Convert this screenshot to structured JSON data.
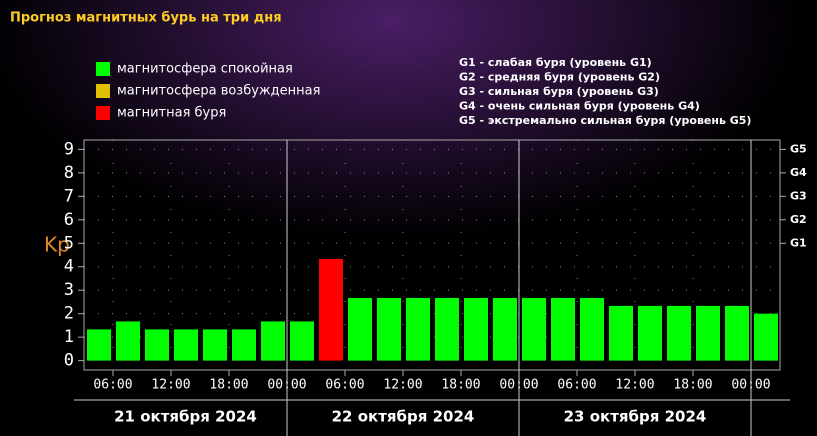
{
  "chart_data": {
    "type": "bar",
    "title": "Прогноз магнитных бурь на три дня",
    "y_label": "Kp",
    "legend": [
      {
        "name": "магнитосфера спокойная",
        "color": "#00ff00"
      },
      {
        "name": "магнитосфера возбужденная",
        "color": "#e0c000"
      },
      {
        "name": "магнитная буря",
        "color": "#ff0000"
      }
    ],
    "notes": [
      "G1 - слабая буря (уровень G1)",
      "G2 - средняя буря (уровень G2)",
      "G3 - сильная буря (уровень G3)",
      "G4 - очень сильная буря (уровень G4)",
      "G5 - экстремально сильная буря (уровень G5)"
    ],
    "values": [
      1.33,
      1.67,
      1.33,
      1.33,
      1.33,
      1.33,
      1.67,
      1.67,
      4.33,
      2.67,
      2.67,
      2.67,
      2.67,
      2.67,
      2.67,
      2.67,
      2.67,
      2.67,
      2.33,
      2.33,
      2.33,
      2.33,
      2.33,
      2.0
    ],
    "colors": [
      "#00ff00",
      "#00ff00",
      "#00ff00",
      "#00ff00",
      "#00ff00",
      "#00ff00",
      "#00ff00",
      "#00ff00",
      "#ff0000",
      "#00ff00",
      "#00ff00",
      "#00ff00",
      "#00ff00",
      "#00ff00",
      "#00ff00",
      "#00ff00",
      "#00ff00",
      "#00ff00",
      "#00ff00",
      "#00ff00",
      "#00ff00",
      "#00ff00",
      "#00ff00",
      "#00ff00"
    ],
    "xlim": [
      0,
      24
    ],
    "xticks": [
      {
        "value": 1,
        "label": "06:00"
      },
      {
        "value": 3,
        "label": "12:00"
      },
      {
        "value": 5,
        "label": "18:00"
      },
      {
        "value": 7,
        "label": "00:00"
      },
      {
        "value": 9,
        "label": "06:00"
      },
      {
        "value": 11,
        "label": "12:00"
      },
      {
        "value": 13,
        "label": "18:00"
      },
      {
        "value": 15,
        "label": "00:00"
      },
      {
        "value": 17,
        "label": "06:00"
      },
      {
        "value": 19,
        "label": "12:00"
      },
      {
        "value": 21,
        "label": "18:00"
      },
      {
        "value": 23,
        "label": "00:00"
      }
    ],
    "days": [
      {
        "label": "21 октября 2024",
        "from": 0,
        "to": 7
      },
      {
        "label": "22 октября 2024",
        "from": 7,
        "to": 15
      },
      {
        "label": "23 октября 2024",
        "from": 15,
        "to": 23
      }
    ],
    "ylim": [
      -0.4,
      9.4
    ],
    "yticks": [
      0,
      1,
      2,
      3,
      4,
      5,
      6,
      7,
      8,
      9
    ],
    "y2ticks": [
      {
        "value": 9,
        "label": "G5"
      },
      {
        "value": 8,
        "label": "G4"
      },
      {
        "value": 7,
        "label": "G3"
      },
      {
        "value": 6,
        "label": "G2"
      },
      {
        "value": 5,
        "label": "G1"
      }
    ],
    "grid": true
  }
}
